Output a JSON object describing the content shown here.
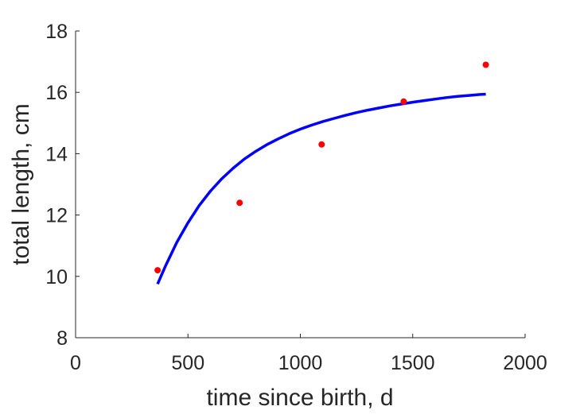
{
  "chart_data": {
    "type": "line",
    "title": "",
    "xlabel": "time since birth, d",
    "ylabel": "total length, cm",
    "xlim": [
      0,
      2000
    ],
    "ylim": [
      8,
      18
    ],
    "xticks": [
      0,
      500,
      1000,
      1500,
      2000
    ],
    "yticks": [
      8,
      10,
      12,
      14,
      16,
      18
    ],
    "grid": false,
    "legend": "none",
    "series": [
      {
        "kind": "line",
        "color": "#0000ff",
        "x": [
          365,
          400,
          450,
          500,
          550,
          600,
          650,
          700,
          750,
          800,
          850,
          900,
          950,
          1000,
          1050,
          1100,
          1150,
          1200,
          1250,
          1300,
          1350,
          1400,
          1450,
          1500,
          1550,
          1600,
          1650,
          1700,
          1750,
          1800,
          1825
        ],
        "y": [
          9.75,
          10.34,
          11.1,
          11.75,
          12.31,
          12.78,
          13.18,
          13.52,
          13.82,
          14.07,
          14.29,
          14.48,
          14.65,
          14.8,
          14.93,
          15.05,
          15.15,
          15.25,
          15.34,
          15.42,
          15.49,
          15.56,
          15.62,
          15.68,
          15.73,
          15.78,
          15.83,
          15.87,
          15.9,
          15.93,
          15.94
        ]
      },
      {
        "kind": "scatter",
        "color": "#ff0000",
        "x": [
          365,
          730,
          1095,
          1460,
          1825
        ],
        "y": [
          10.2,
          12.4,
          14.3,
          15.7,
          16.9
        ]
      }
    ]
  }
}
